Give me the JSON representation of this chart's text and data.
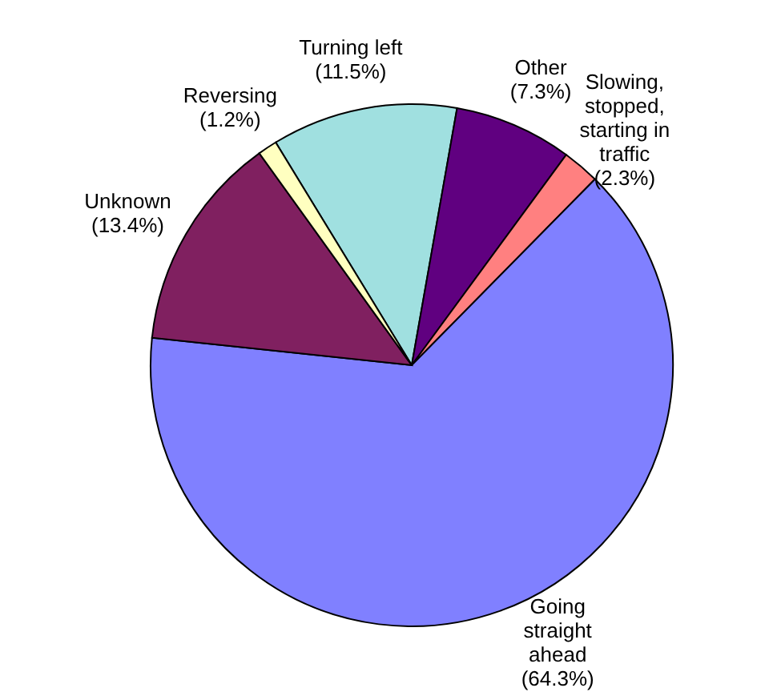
{
  "chart_data": {
    "type": "pie",
    "categories": [
      "Turning left",
      "Other",
      "Slowing, stopped, starting in traffic",
      "Going straight ahead",
      "Unknown",
      "Reversing"
    ],
    "values": [
      11.5,
      7.3,
      2.3,
      64.3,
      13.4,
      1.2
    ],
    "value_labels": [
      "(11.5%)",
      "(7.3%)",
      "(2.3%)",
      "(64.3%)",
      "(13.4%)",
      "(1.2%)"
    ],
    "colors": [
      "#a0e0e0",
      "#600080",
      "#ff8080",
      "#8080ff",
      "#802060",
      "#ffffc0"
    ]
  }
}
